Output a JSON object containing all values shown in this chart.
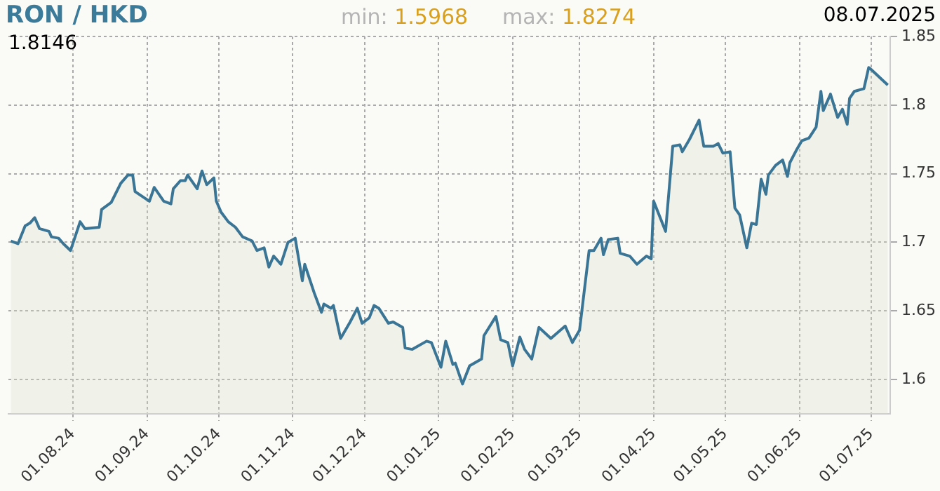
{
  "chart_data": {
    "type": "area",
    "title": "RON / HKD",
    "annotations": [
      "min: 1.5968",
      "max: 1.8274",
      "08.07.2025",
      "1.8146"
    ],
    "xlim": [
      "2024-07-05",
      "2025-07-09"
    ],
    "ylim": [
      1.575,
      1.85
    ],
    "xticks": [
      {
        "value": "2024-08-01",
        "label": "01.08.24"
      },
      {
        "value": "2024-09-01",
        "label": "01.09.24"
      },
      {
        "value": "2024-10-01",
        "label": "01.10.24"
      },
      {
        "value": "2024-11-01",
        "label": "01.11.24"
      },
      {
        "value": "2024-12-01",
        "label": "01.12.24"
      },
      {
        "value": "2025-01-01",
        "label": "01.01.25"
      },
      {
        "value": "2025-02-01",
        "label": "01.02.25"
      },
      {
        "value": "2025-03-01",
        "label": "01.03.25"
      },
      {
        "value": "2025-04-01",
        "label": "01.04.25"
      },
      {
        "value": "2025-05-01",
        "label": "01.05.25"
      },
      {
        "value": "2025-06-01",
        "label": "01.06.25"
      },
      {
        "value": "2025-07-01",
        "label": "01.07.25"
      }
    ],
    "yticks": [
      1.6,
      1.65,
      1.7,
      1.75,
      1.8,
      1.85
    ],
    "grid": true,
    "legend": false,
    "series": [
      {
        "color": "#3a7596",
        "x": [
          "2024-07-06",
          "2024-07-09",
          "2024-07-12",
          "2024-07-14",
          "2024-07-16",
          "2024-07-18",
          "2024-07-22",
          "2024-07-23",
          "2024-07-26",
          "2024-07-28",
          "2024-07-31",
          "2024-08-04",
          "2024-08-06",
          "2024-08-12",
          "2024-08-13",
          "2024-08-17",
          "2024-08-21",
          "2024-08-24",
          "2024-08-26",
          "2024-08-27",
          "2024-09-02",
          "2024-09-04",
          "2024-09-08",
          "2024-09-11",
          "2024-09-12",
          "2024-09-15",
          "2024-09-17",
          "2024-09-18",
          "2024-09-22",
          "2024-09-24",
          "2024-09-26",
          "2024-09-29",
          "2024-09-30",
          "2024-10-02",
          "2024-10-05",
          "2024-10-08",
          "2024-10-11",
          "2024-10-15",
          "2024-10-17",
          "2024-10-20",
          "2024-10-22",
          "2024-10-24",
          "2024-10-27",
          "2024-10-30",
          "2024-11-02",
          "2024-11-05",
          "2024-11-06",
          "2024-11-10",
          "2024-11-13",
          "2024-11-14",
          "2024-11-17",
          "2024-11-18",
          "2024-11-21",
          "2024-11-25",
          "2024-11-28",
          "2024-11-30",
          "2024-12-03",
          "2024-12-05",
          "2024-12-07",
          "2024-12-11",
          "2024-12-13",
          "2024-12-17",
          "2024-12-18",
          "2024-12-21",
          "2024-12-27",
          "2024-12-29",
          "2025-01-02",
          "2025-01-04",
          "2025-01-07",
          "2025-01-08",
          "2025-01-11",
          "2025-01-14",
          "2025-01-19",
          "2025-01-20",
          "2025-01-25",
          "2025-01-27",
          "2025-01-30",
          "2025-02-01",
          "2025-02-04",
          "2025-02-06",
          "2025-02-09",
          "2025-02-12",
          "2025-02-17",
          "2025-02-23",
          "2025-02-26",
          "2025-03-01",
          "2025-03-05",
          "2025-03-07",
          "2025-03-10",
          "2025-03-11",
          "2025-03-13",
          "2025-03-17",
          "2025-03-18",
          "2025-03-22",
          "2025-03-25",
          "2025-03-29",
          "2025-03-31",
          "2025-04-01",
          "2025-04-06",
          "2025-04-09",
          "2025-04-12",
          "2025-04-13",
          "2025-04-16",
          "2025-04-20",
          "2025-04-22",
          "2025-04-26",
          "2025-04-28",
          "2025-04-30",
          "2025-05-03",
          "2025-05-05",
          "2025-05-07",
          "2025-05-10",
          "2025-05-12",
          "2025-05-14",
          "2025-05-16",
          "2025-05-18",
          "2025-05-19",
          "2025-05-22",
          "2025-05-25",
          "2025-05-27",
          "2025-05-28",
          "2025-05-31",
          "2025-06-02",
          "2025-06-05",
          "2025-06-08",
          "2025-06-10",
          "2025-06-11",
          "2025-06-14",
          "2025-06-17",
          "2025-06-19",
          "2025-06-21",
          "2025-06-22",
          "2025-06-24",
          "2025-06-28",
          "2025-06-30",
          "2025-07-01",
          "2025-07-08"
        ],
        "values": [
          1.701,
          1.699,
          1.712,
          1.714,
          1.718,
          1.71,
          1.708,
          1.704,
          1.703,
          1.699,
          1.694,
          1.715,
          1.71,
          1.711,
          1.724,
          1.729,
          1.743,
          1.749,
          1.749,
          1.737,
          1.73,
          1.74,
          1.73,
          1.728,
          1.739,
          1.745,
          1.745,
          1.749,
          1.739,
          1.752,
          1.742,
          1.747,
          1.73,
          1.722,
          1.715,
          1.711,
          1.704,
          1.701,
          1.694,
          1.696,
          1.682,
          1.69,
          1.684,
          1.7,
          1.703,
          1.672,
          1.684,
          1.663,
          1.649,
          1.655,
          1.652,
          1.654,
          1.63,
          1.642,
          1.652,
          1.641,
          1.645,
          1.654,
          1.652,
          1.641,
          1.642,
          1.638,
          1.623,
          1.622,
          1.628,
          1.627,
          1.609,
          1.628,
          1.611,
          1.612,
          1.5968,
          1.61,
          1.615,
          1.632,
          1.646,
          1.629,
          1.627,
          1.61,
          1.631,
          1.622,
          1.615,
          1.638,
          1.63,
          1.639,
          1.627,
          1.636,
          1.694,
          1.694,
          1.703,
          1.691,
          1.702,
          1.703,
          1.692,
          1.69,
          1.684,
          1.69,
          1.688,
          1.73,
          1.708,
          1.77,
          1.771,
          1.766,
          1.775,
          1.789,
          1.77,
          1.77,
          1.772,
          1.765,
          1.766,
          1.725,
          1.72,
          1.696,
          1.714,
          1.713,
          1.746,
          1.735,
          1.749,
          1.756,
          1.76,
          1.748,
          1.758,
          1.768,
          1.774,
          1.776,
          1.784,
          1.81,
          1.796,
          1.808,
          1.791,
          1.797,
          1.786,
          1.805,
          1.81,
          1.812,
          1.8274,
          1.826,
          1.8146
        ]
      }
    ]
  }
}
